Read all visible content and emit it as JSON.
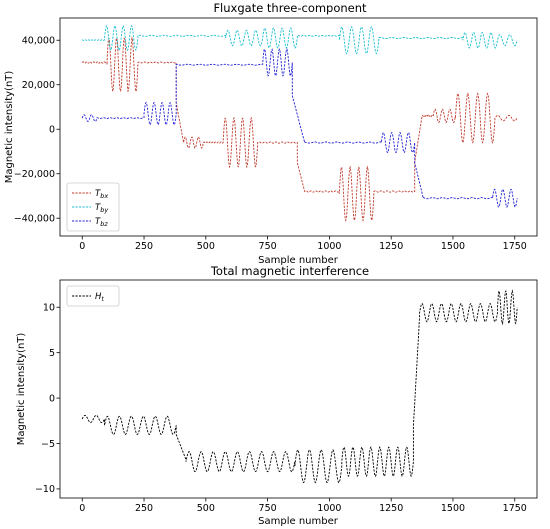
{
  "chart_data": [
    {
      "type": "line",
      "title": "Fluxgate three-component",
      "xlabel": "Sample number",
      "ylabel": "Magnetic intensity(nT)",
      "xlim": [
        -90,
        1840
      ],
      "ylim": [
        -48000,
        50000
      ],
      "xticks": [
        0,
        250,
        500,
        750,
        1000,
        1250,
        1500,
        1750
      ],
      "yticks": [
        -40000,
        -20000,
        0,
        20000,
        40000
      ],
      "ytick_labels": [
        "−40,000",
        "−20,000",
        "0",
        "20,000",
        "40,000"
      ],
      "legend_position": "lower-left",
      "series": [
        {
          "name": "T",
          "subscript": "bx",
          "color": "#c0392b",
          "segments": [
            {
              "x0": 0,
              "x1": 100,
              "base": 30000,
              "amp": 600,
              "osc": 0
            },
            {
              "x0": 100,
              "x1": 225,
              "base": 29000,
              "amp": 12000,
              "osc": 4
            },
            {
              "x0": 225,
              "x1": 380,
              "base": 30000,
              "amp": 400,
              "osc": 0
            },
            {
              "x0": 380,
              "x1": 410,
              "base": 12000,
              "amp": 0,
              "osc": 0,
              "ramp_to": -6000
            },
            {
              "x0": 410,
              "x1": 490,
              "base": -6000,
              "amp": 2500,
              "osc": 3
            },
            {
              "x0": 490,
              "x1": 570,
              "base": -6000,
              "amp": 500,
              "osc": 0
            },
            {
              "x0": 570,
              "x1": 710,
              "base": -6000,
              "amp": 11000,
              "osc": 4
            },
            {
              "x0": 710,
              "x1": 870,
              "base": -6000,
              "amp": 600,
              "osc": 0
            },
            {
              "x0": 870,
              "x1": 900,
              "base": -15000,
              "amp": 0,
              "osc": 0,
              "ramp_to": -28000
            },
            {
              "x0": 900,
              "x1": 1040,
              "base": -28000,
              "amp": 600,
              "osc": 0
            },
            {
              "x0": 1040,
              "x1": 1180,
              "base": -29000,
              "amp": 12000,
              "osc": 4
            },
            {
              "x0": 1180,
              "x1": 1345,
              "base": -28000,
              "amp": 600,
              "osc": 0
            },
            {
              "x0": 1345,
              "x1": 1375,
              "base": -15000,
              "amp": 0,
              "osc": 0,
              "ramp_to": 6000
            },
            {
              "x0": 1375,
              "x1": 1420,
              "base": 6000,
              "amp": 500,
              "osc": 0
            },
            {
              "x0": 1420,
              "x1": 1510,
              "base": 6000,
              "amp": 3000,
              "osc": 3
            },
            {
              "x0": 1510,
              "x1": 1670,
              "base": 5000,
              "amp": 11000,
              "osc": 4
            },
            {
              "x0": 1670,
              "x1": 1760,
              "base": 5000,
              "amp": 1200,
              "osc": 2
            }
          ]
        },
        {
          "name": "T",
          "subscript": "by",
          "color": "#17becf",
          "segments": [
            {
              "x0": 0,
              "x1": 90,
              "base": 40000,
              "amp": 400,
              "osc": 0
            },
            {
              "x0": 90,
              "x1": 225,
              "base": 41000,
              "amp": 5500,
              "osc": 4
            },
            {
              "x0": 225,
              "x1": 580,
              "base": 42000,
              "amp": 500,
              "osc": 0
            },
            {
              "x0": 580,
              "x1": 730,
              "base": 41000,
              "amp": 3500,
              "osc": 4
            },
            {
              "x0": 730,
              "x1": 870,
              "base": 41000,
              "amp": 4500,
              "osc": 4
            },
            {
              "x0": 870,
              "x1": 1040,
              "base": 42000,
              "amp": 400,
              "osc": 0
            },
            {
              "x0": 1040,
              "x1": 1200,
              "base": 40000,
              "amp": 6000,
              "osc": 4
            },
            {
              "x0": 1200,
              "x1": 1540,
              "base": 41000,
              "amp": 500,
              "osc": 0
            },
            {
              "x0": 1540,
              "x1": 1680,
              "base": 40000,
              "amp": 3500,
              "osc": 4
            },
            {
              "x0": 1680,
              "x1": 1760,
              "base": 40000,
              "amp": 2500,
              "osc": 2
            }
          ]
        },
        {
          "name": "T",
          "subscript": "bz",
          "color": "#1f1fd6",
          "segments": [
            {
              "x0": 0,
              "x1": 60,
              "base": 5000,
              "amp": 1500,
              "osc": 2
            },
            {
              "x0": 60,
              "x1": 250,
              "base": 5000,
              "amp": 400,
              "osc": 0
            },
            {
              "x0": 250,
              "x1": 380,
              "base": 7000,
              "amp": 5000,
              "osc": 4
            },
            {
              "x0": 380,
              "x1": 730,
              "base": 29000,
              "amp": 400,
              "osc": 0
            },
            {
              "x0": 730,
              "x1": 850,
              "base": 30000,
              "amp": 6000,
              "osc": 4
            },
            {
              "x0": 850,
              "x1": 900,
              "base": 15000,
              "amp": 0,
              "osc": 0,
              "ramp_to": -6000
            },
            {
              "x0": 900,
              "x1": 1210,
              "base": -6000,
              "amp": 500,
              "osc": 0
            },
            {
              "x0": 1210,
              "x1": 1345,
              "base": -6000,
              "amp": 4500,
              "osc": 4
            },
            {
              "x0": 1345,
              "x1": 1380,
              "base": -15000,
              "amp": 0,
              "osc": 0,
              "ramp_to": -31000
            },
            {
              "x0": 1380,
              "x1": 1660,
              "base": -31000,
              "amp": 500,
              "osc": 0
            },
            {
              "x0": 1660,
              "x1": 1760,
              "base": -31000,
              "amp": 4000,
              "osc": 3
            }
          ]
        }
      ]
    },
    {
      "type": "line",
      "title": "Total magnetic interference",
      "xlabel": "Sample number",
      "ylabel": "Magnetic intensity(nT)",
      "xlim": [
        -90,
        1840
      ],
      "ylim": [
        -11,
        13
      ],
      "xticks": [
        0,
        250,
        500,
        750,
        1000,
        1250,
        1500,
        1750
      ],
      "yticks": [
        -10,
        -5,
        0,
        5,
        10
      ],
      "ytick_labels": [
        "−10",
        "−5",
        "0",
        "5",
        "10"
      ],
      "legend_position": "top-left",
      "series": [
        {
          "name": "H",
          "subscript": "t",
          "color": "#000000",
          "segments": [
            {
              "x0": 0,
              "x1": 90,
              "base": -2.3,
              "amp": 0.4,
              "osc": 2
            },
            {
              "x0": 90,
              "x1": 380,
              "base": -3.0,
              "amp": 1.0,
              "osc": 6
            },
            {
              "x0": 380,
              "x1": 420,
              "base": -4.0,
              "amp": 0,
              "osc": 0,
              "ramp_to": -6.8
            },
            {
              "x0": 420,
              "x1": 860,
              "base": -7.0,
              "amp": 1.1,
              "osc": 9
            },
            {
              "x0": 860,
              "x1": 1050,
              "base": -7.5,
              "amp": 1.8,
              "osc": 4
            },
            {
              "x0": 1050,
              "x1": 1340,
              "base": -7.0,
              "amp": 1.6,
              "osc": 8
            },
            {
              "x0": 1340,
              "x1": 1365,
              "base": -3.0,
              "amp": 0,
              "osc": 0,
              "ramp_to": 9.0
            },
            {
              "x0": 1365,
              "x1": 1680,
              "base": 9.4,
              "amp": 1.0,
              "osc": 8
            },
            {
              "x0": 1680,
              "x1": 1760,
              "base": 10.0,
              "amp": 1.8,
              "osc": 3
            }
          ]
        }
      ]
    }
  ]
}
